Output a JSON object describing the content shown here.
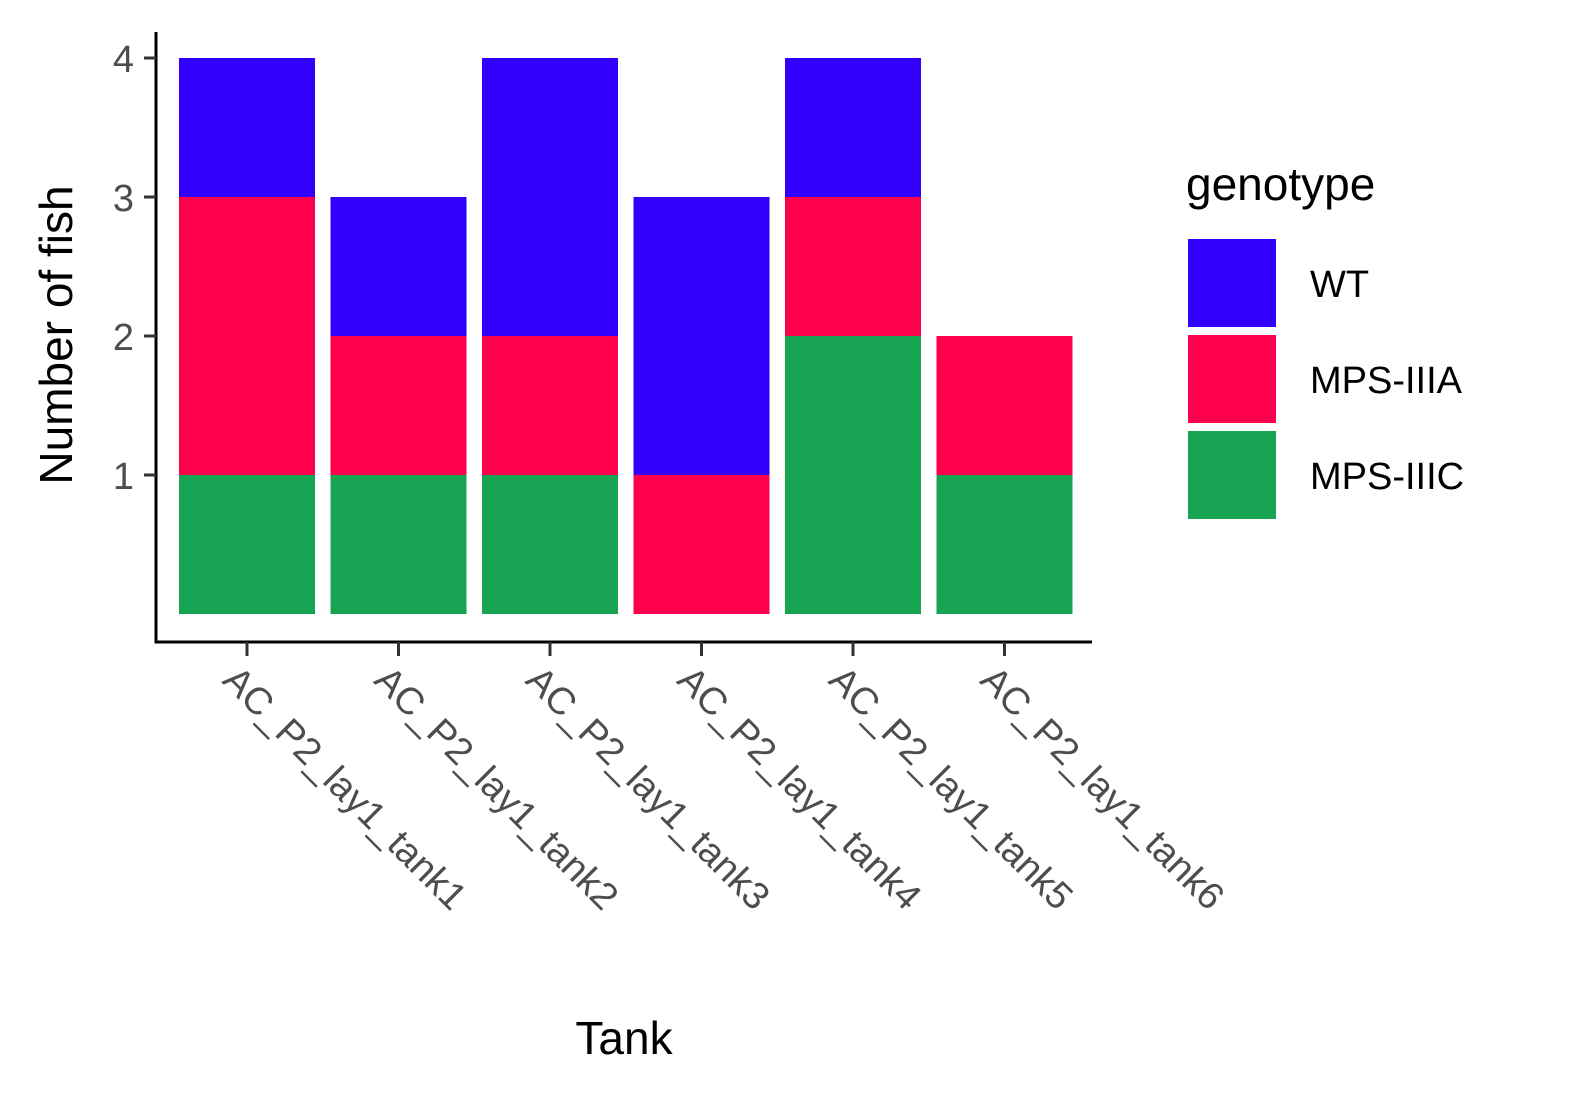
{
  "chart_data": {
    "type": "bar",
    "stacked": true,
    "title": "",
    "xlabel": "Tank",
    "ylabel": "Number of fish",
    "ylim": [
      0,
      4.2
    ],
    "yticks": [
      1,
      2,
      3,
      4
    ],
    "grid": false,
    "legend_position": "right",
    "legend_title": "genotype",
    "categories": [
      "AC_P2_lay1_tank1",
      "AC_P2_lay1_tank2",
      "AC_P2_lay1_tank3",
      "AC_P2_lay1_tank4",
      "AC_P2_lay1_tank5",
      "AC_P2_lay1_tank6"
    ],
    "series": [
      {
        "name": "WT",
        "color": "#3300ff",
        "values": [
          1,
          1,
          2,
          2,
          1,
          0
        ]
      },
      {
        "name": "MPS-IIIA",
        "color": "#ff004d",
        "values": [
          2,
          1,
          1,
          1,
          1,
          1
        ]
      },
      {
        "name": "MPS-IIIC",
        "color": "#16a452",
        "values": [
          1,
          1,
          1,
          0,
          2,
          1
        ]
      }
    ]
  }
}
